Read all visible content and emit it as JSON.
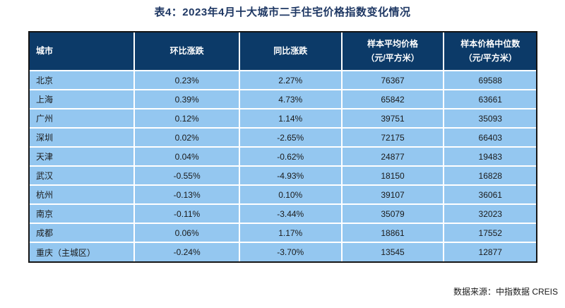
{
  "title": "表4：2023年4月十大城市二手住宅价格指数变化情况",
  "source_note": "数据来源：中指数据 CREIS",
  "colors": {
    "title_text": "#1F3864",
    "header_bg": "#0C3A68",
    "header_text": "#FFFFFF",
    "row_bg": "#94C7F0",
    "row_text": "#1A1A1A",
    "grid_line": "#FFFFFF",
    "outer_border": "#151515",
    "page_bg": "#FFFFFF"
  },
  "table": {
    "columns": [
      {
        "label": "城市",
        "sub": ""
      },
      {
        "label": "环比涨跌",
        "sub": ""
      },
      {
        "label": "同比涨跌",
        "sub": ""
      },
      {
        "label": "样本平均价格",
        "sub": "（元/平方米）"
      },
      {
        "label": "样本价格中位数",
        "sub": "（元/平方米）"
      }
    ],
    "rows": [
      {
        "city": "北京",
        "mom": "0.23%",
        "yoy": "2.27%",
        "avg_price": "76367",
        "median_price": "69588"
      },
      {
        "city": "上海",
        "mom": "0.39%",
        "yoy": "4.73%",
        "avg_price": "65842",
        "median_price": "63661"
      },
      {
        "city": "广州",
        "mom": "0.12%",
        "yoy": "1.14%",
        "avg_price": "39751",
        "median_price": "35093"
      },
      {
        "city": "深圳",
        "mom": "0.02%",
        "yoy": "-2.65%",
        "avg_price": "72175",
        "median_price": "66403"
      },
      {
        "city": "天津",
        "mom": "0.04%",
        "yoy": "-0.62%",
        "avg_price": "24877",
        "median_price": "19483"
      },
      {
        "city": "武汉",
        "mom": "-0.55%",
        "yoy": "-4.93%",
        "avg_price": "18150",
        "median_price": "16828"
      },
      {
        "city": "杭州",
        "mom": "-0.13%",
        "yoy": "0.10%",
        "avg_price": "39107",
        "median_price": "36061"
      },
      {
        "city": "南京",
        "mom": "-0.11%",
        "yoy": "-3.44%",
        "avg_price": "35079",
        "median_price": "32023"
      },
      {
        "city": "成都",
        "mom": "0.06%",
        "yoy": "1.17%",
        "avg_price": "18861",
        "median_price": "17552"
      },
      {
        "city": "重庆（主城区）",
        "mom": "-0.24%",
        "yoy": "-3.70%",
        "avg_price": "13545",
        "median_price": "12877"
      }
    ]
  }
}
